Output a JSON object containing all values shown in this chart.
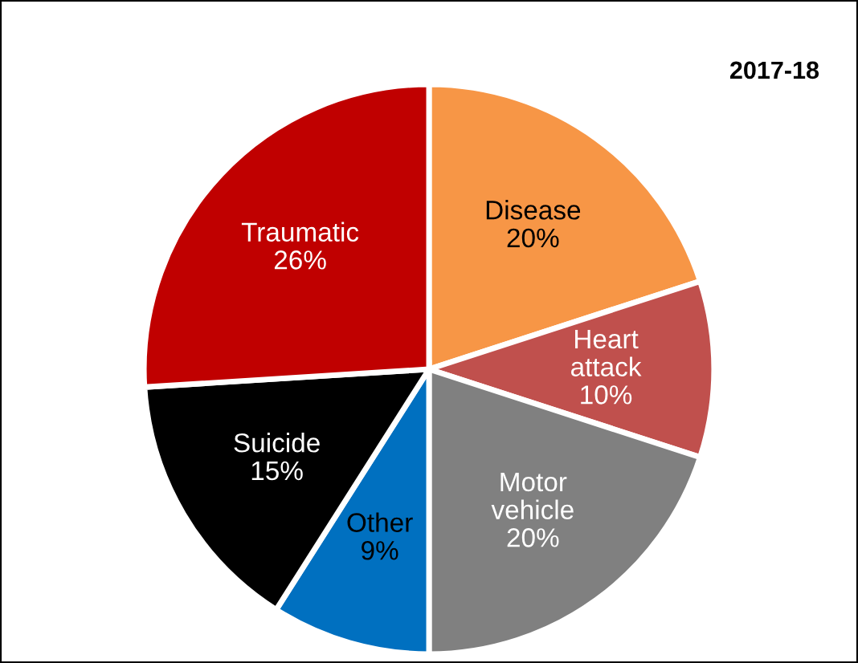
{
  "chart_data": {
    "type": "pie",
    "title": "2017-18",
    "categories": [
      "Disease",
      "Heart\nattack",
      "Motor\nvehicle",
      "Other",
      "Suicide",
      "Traumatic"
    ],
    "values": [
      20,
      10,
      20,
      9,
      15,
      26
    ],
    "colors": [
      "#f79646",
      "#c0504d",
      "#808080",
      "#0070c0",
      "#000000",
      "#c00000"
    ],
    "value_labels": [
      "20%",
      "10%",
      "20%",
      "9%",
      "15%",
      "26%"
    ],
    "legend": false
  }
}
